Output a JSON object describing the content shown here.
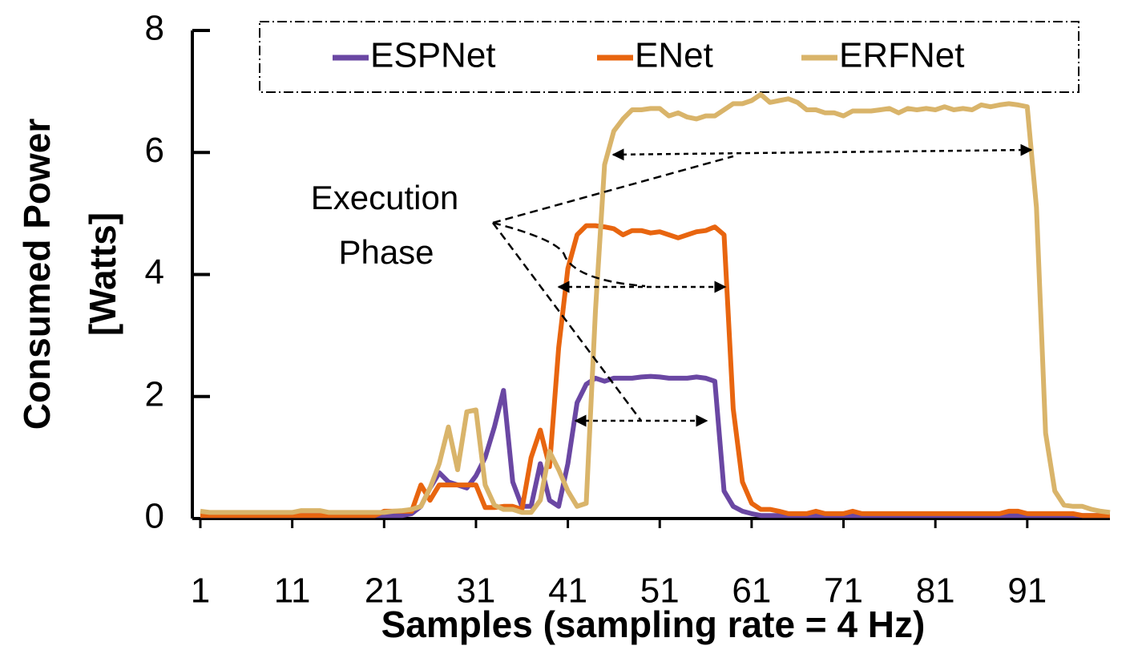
{
  "chart_data": {
    "type": "line",
    "xlabel": "Samples (sampling rate = 4 Hz)",
    "ylabel_lines": [
      "Consumed Power",
      "[Watts]"
    ],
    "annotation_lines": [
      "Execution",
      "Phase"
    ],
    "x": [
      1,
      2,
      3,
      4,
      5,
      6,
      7,
      8,
      9,
      10,
      11,
      12,
      13,
      14,
      15,
      16,
      17,
      18,
      19,
      20,
      21,
      22,
      23,
      24,
      25,
      26,
      27,
      28,
      29,
      30,
      31,
      32,
      33,
      34,
      35,
      36,
      37,
      38,
      39,
      40,
      41,
      42,
      43,
      44,
      45,
      46,
      47,
      48,
      49,
      50,
      51,
      52,
      53,
      54,
      55,
      56,
      57,
      58,
      59,
      60,
      61,
      62,
      63,
      64,
      65,
      66,
      67,
      68,
      69,
      70,
      71,
      72,
      73,
      74,
      75,
      76,
      77,
      78,
      79,
      80,
      81,
      82,
      83,
      84,
      85,
      86,
      87,
      88,
      89,
      90,
      91,
      92,
      93,
      94,
      95,
      96,
      97,
      98,
      99,
      100
    ],
    "xlim": [
      1,
      100
    ],
    "xticks": [
      1,
      11,
      21,
      31,
      41,
      51,
      61,
      71,
      81,
      91
    ],
    "ylim": [
      0,
      8
    ],
    "yticks": [
      0,
      2,
      4,
      6,
      8
    ],
    "legend": "top",
    "series": [
      {
        "name": "ESPNet",
        "color": "#6a47a3",
        "values": [
          0.05,
          0.05,
          0.05,
          0.05,
          0.05,
          0.05,
          0.05,
          0.05,
          0.05,
          0.05,
          0.05,
          0.05,
          0.05,
          0.05,
          0.05,
          0.05,
          0.05,
          0.05,
          0.05,
          0.05,
          0.05,
          0.05,
          0.05,
          0.08,
          0.2,
          0.5,
          0.75,
          0.6,
          0.55,
          0.5,
          0.7,
          1.0,
          1.5,
          2.1,
          0.6,
          0.2,
          0.2,
          0.9,
          0.3,
          0.2,
          0.9,
          1.9,
          2.2,
          2.3,
          2.25,
          2.3,
          2.3,
          2.3,
          2.32,
          2.33,
          2.32,
          2.3,
          2.3,
          2.3,
          2.32,
          2.3,
          2.25,
          0.45,
          0.2,
          0.12,
          0.08,
          0.05,
          0.05,
          0.05,
          0.05,
          0.05,
          0.05,
          0.05,
          0.05,
          0.05,
          0.05,
          0.05,
          0.05,
          0.05,
          0.05,
          0.05,
          0.05,
          0.05,
          0.05,
          0.05,
          0.05,
          0.05,
          0.05,
          0.05,
          0.05,
          0.05,
          0.05,
          0.05,
          0.05,
          0.05,
          0.05,
          0.05,
          0.05,
          0.05,
          0.05,
          0.05,
          0.05,
          0.05,
          0.05,
          0.05
        ]
      },
      {
        "name": "ENet",
        "color": "#e8650f",
        "values": [
          0.05,
          0.05,
          0.05,
          0.05,
          0.05,
          0.05,
          0.05,
          0.05,
          0.05,
          0.05,
          0.05,
          0.05,
          0.05,
          0.05,
          0.05,
          0.05,
          0.05,
          0.05,
          0.05,
          0.05,
          0.12,
          0.12,
          0.12,
          0.12,
          0.55,
          0.3,
          0.55,
          0.55,
          0.55,
          0.55,
          0.55,
          0.18,
          0.18,
          0.2,
          0.2,
          0.15,
          1.0,
          1.45,
          0.85,
          2.8,
          4.1,
          4.65,
          4.8,
          4.8,
          4.78,
          4.75,
          4.65,
          4.72,
          4.72,
          4.68,
          4.7,
          4.65,
          4.6,
          4.65,
          4.7,
          4.72,
          4.78,
          4.65,
          1.8,
          0.6,
          0.25,
          0.15,
          0.15,
          0.12,
          0.08,
          0.08,
          0.08,
          0.12,
          0.08,
          0.08,
          0.08,
          0.12,
          0.08,
          0.08,
          0.08,
          0.08,
          0.08,
          0.08,
          0.08,
          0.08,
          0.08,
          0.08,
          0.08,
          0.08,
          0.08,
          0.08,
          0.08,
          0.08,
          0.12,
          0.12,
          0.08,
          0.08,
          0.08,
          0.08,
          0.08,
          0.08,
          0.05,
          0.05,
          0.05,
          0.05
        ]
      },
      {
        "name": "ERFNet",
        "color": "#d9b46a",
        "values": [
          0.12,
          0.1,
          0.1,
          0.1,
          0.1,
          0.1,
          0.1,
          0.1,
          0.1,
          0.1,
          0.1,
          0.13,
          0.13,
          0.13,
          0.1,
          0.1,
          0.1,
          0.1,
          0.1,
          0.1,
          0.1,
          0.12,
          0.13,
          0.15,
          0.2,
          0.5,
          0.9,
          1.5,
          0.8,
          1.75,
          1.78,
          0.55,
          0.22,
          0.15,
          0.15,
          0.1,
          0.1,
          0.3,
          1.1,
          0.8,
          0.45,
          0.2,
          0.25,
          3.4,
          5.8,
          6.35,
          6.55,
          6.7,
          6.7,
          6.72,
          6.72,
          6.6,
          6.65,
          6.58,
          6.55,
          6.6,
          6.6,
          6.7,
          6.8,
          6.8,
          6.85,
          6.95,
          6.82,
          6.85,
          6.88,
          6.82,
          6.7,
          6.7,
          6.65,
          6.65,
          6.6,
          6.68,
          6.68,
          6.68,
          6.7,
          6.72,
          6.65,
          6.72,
          6.7,
          6.72,
          6.7,
          6.75,
          6.7,
          6.72,
          6.7,
          6.78,
          6.75,
          6.78,
          6.8,
          6.78,
          6.75,
          5.1,
          1.4,
          0.45,
          0.22,
          0.2,
          0.2,
          0.15,
          0.12,
          0.1
        ]
      }
    ]
  }
}
